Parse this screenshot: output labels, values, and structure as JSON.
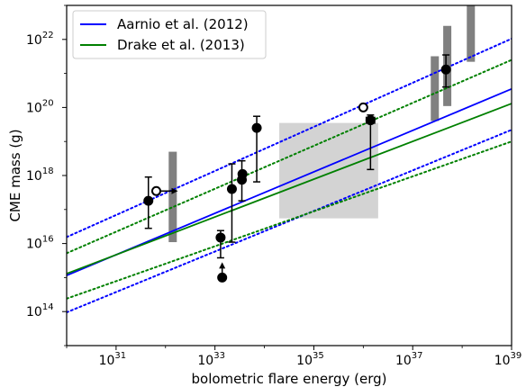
{
  "chart_data": {
    "type": "scatter",
    "xlabel": "bolometric flare energy (erg)",
    "ylabel": "CME mass (g)",
    "x_scale": "log",
    "y_scale": "log",
    "xlim": [
      1e+30,
      1e+39
    ],
    "ylim": [
      10000000000000.0,
      1e+23
    ],
    "x_ticks": [
      {
        "value": 1e+31,
        "base": "10",
        "exp": "31"
      },
      {
        "value": 1e+33,
        "base": "10",
        "exp": "33"
      },
      {
        "value": 1e+35,
        "base": "10",
        "exp": "35"
      },
      {
        "value": 1e+37,
        "base": "10",
        "exp": "37"
      },
      {
        "value": 1e+39,
        "base": "10",
        "exp": "39"
      }
    ],
    "y_ticks": [
      {
        "value": 100000000000000.0,
        "base": "10",
        "exp": "14"
      },
      {
        "value": 1e+16,
        "base": "10",
        "exp": "16"
      },
      {
        "value": 1e+18,
        "base": "10",
        "exp": "18"
      },
      {
        "value": 1e+20,
        "base": "10",
        "exp": "20"
      },
      {
        "value": 1e+22,
        "base": "10",
        "exp": "22"
      }
    ],
    "grid": false,
    "legend_position": "top-left",
    "series": [
      {
        "name": "Aarnio et al. (2012)",
        "color": "#0000ff",
        "style": "solid",
        "x": [
          1e+30,
          1e+39
        ],
        "y": [
          1150000000000000.0,
          3.5e+20
        ]
      },
      {
        "name": "Drake et al. (2013)",
        "color": "#008000",
        "style": "solid",
        "x": [
          1e+30,
          1e+39
        ],
        "y": [
          1300000000000000.0,
          1.3e+20
        ]
      }
    ],
    "bound_lines": [
      {
        "color": "#0000ff",
        "style": "dotted",
        "x": [
          1e+30,
          1e+39
        ],
        "y": [
          1.55e+16,
          1.05e+22
        ]
      },
      {
        "color": "#0000ff",
        "style": "dotted",
        "x": [
          1e+30,
          1e+39
        ],
        "y": [
          95000000000000.0,
          2.2e+19
        ]
      },
      {
        "color": "#008000",
        "style": "dotted",
        "x": [
          1e+30,
          1e+39
        ],
        "y": [
          5200000000000000.0,
          2.5e+21
        ]
      },
      {
        "color": "#008000",
        "style": "dotted",
        "x": [
          1e+30,
          1e+39
        ],
        "y": [
          240000000000000.0,
          1e+19
        ]
      }
    ],
    "shaded_region": {
      "color": "#d3d3d3",
      "x": [
        2e+34,
        2e+36
      ],
      "y": [
        5.5e+16,
        3.5e+19
      ]
    },
    "bars": [
      {
        "color": "#808080",
        "x": 1.4e+32,
        "y": [
          1.1e+16,
          5e+18
        ]
      },
      {
        "color": "#808080",
        "x": 2.8e+37,
        "y": [
          4e+19,
          3.2e+21
        ]
      },
      {
        "color": "#808080",
        "x": 5e+37,
        "y": [
          1.1e+20,
          2.5e+22
        ]
      },
      {
        "color": "#808080",
        "x": 1.5e+38,
        "y": [
          2.2e+21,
          1.1e+23
        ]
      }
    ],
    "points": [
      {
        "x": 4.5e+31,
        "y": 1.8e+17,
        "yerr": [
          2.8e+16,
          9e+17
        ],
        "marker": "filled"
      },
      {
        "x": 2.2e+33,
        "y": 4e+17,
        "yerr": [
          1.1e+16,
          2.2e+18
        ],
        "marker": "filled"
      },
      {
        "x": 1.3e+33,
        "y": 1.5e+16,
        "yerr": [
          3800000000000000.0,
          2.4e+16
        ],
        "marker": "filled"
      },
      {
        "x": 1.4e+33,
        "y": 1000000000000000.0,
        "marker": "filled",
        "lower_limit": true
      },
      {
        "x": 3.5e+33,
        "y": 7.5e+17,
        "yerr": [
          1.8e+17,
          2.7e+18
        ],
        "marker": "filled"
      },
      {
        "x": 3.6e+33,
        "y": 1.1e+18,
        "marker": "filled"
      },
      {
        "x": 7e+33,
        "y": 2.5e+19,
        "yerr": [
          6.5e+17,
          5.5e+19
        ],
        "marker": "filled"
      },
      {
        "x": 1.4e+36,
        "y": 4.2e+19,
        "yerr": [
          1.5e+18,
          6e+19
        ],
        "marker": "filled",
        "xerr": [
          1.15e+36,
          1.7e+36
        ]
      },
      {
        "x": 4.7e+37,
        "y": 1.3e+21,
        "yerr": [
          4e+20,
          3.5e+21
        ],
        "marker": "filled"
      },
      {
        "x": 6.5e+31,
        "y": 3.5e+17,
        "marker": "open",
        "arrow": "right"
      },
      {
        "x": 1e+36,
        "y": 1e+20,
        "marker": "open"
      }
    ]
  }
}
